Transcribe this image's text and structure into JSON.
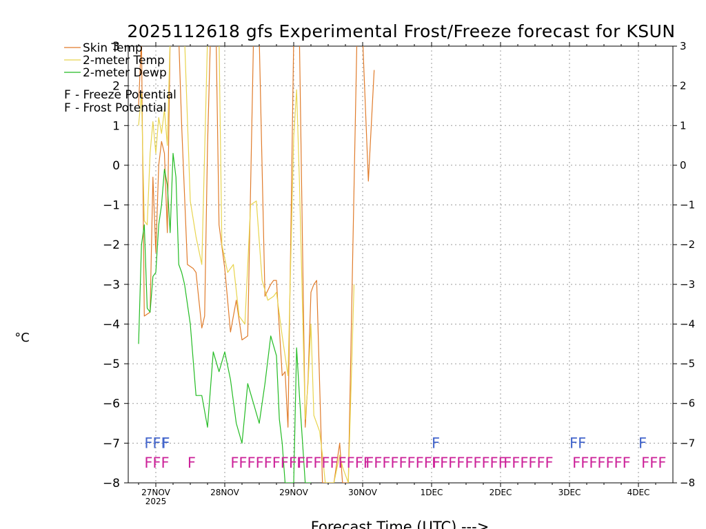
{
  "chart_data": {
    "type": "line",
    "title": "2025112618 gfs Experimental Frost/Freeze forecast for KSUN",
    "ylabel": "°C",
    "xlabel": "Forecast Time (UTC) --->",
    "ylim": [
      -8,
      3
    ],
    "yticks": [
      -8,
      -7,
      -6,
      -5,
      -4,
      -3,
      -2,
      -1,
      0,
      1,
      2,
      3
    ],
    "xlim_hours": [
      -3.6,
      186
    ],
    "grid": true,
    "x_ticks": [
      {
        "label": "27NOV",
        "sublabel": "2025",
        "hour": 6
      },
      {
        "label": "28NOV",
        "hour": 30
      },
      {
        "label": "29NOV",
        "hour": 54
      },
      {
        "label": "30NOV",
        "hour": 78
      },
      {
        "label": "1DEC",
        "hour": 102
      },
      {
        "label": "2DEC",
        "hour": 126
      },
      {
        "label": "3DEC",
        "hour": 150
      },
      {
        "label": "4DEC",
        "hour": 174
      }
    ],
    "legend": [
      {
        "label": "Skin Temp",
        "color": "#e07b2a"
      },
      {
        "label": "2-meter Temp",
        "color": "#e8d44d"
      },
      {
        "label": "2-meter Dewp",
        "color": "#22bb22"
      }
    ],
    "flag_legend": [
      {
        "label": "F - Freeze Potential",
        "color": "#cc2299"
      },
      {
        "label": "F - Frost Potential",
        "color": "#4466cc"
      }
    ],
    "series": [
      {
        "name": "Skin Temp",
        "color": "#e07b2a",
        "points": [
          [
            0,
            1.5
          ],
          [
            1,
            3.2
          ],
          [
            2,
            -3.8
          ],
          [
            3,
            -3.75
          ],
          [
            4,
            -3.7
          ],
          [
            5,
            -0.3
          ],
          [
            6,
            -2.2
          ],
          [
            7,
            0.0
          ],
          [
            8,
            0.6
          ],
          [
            9,
            0.3
          ],
          [
            10,
            -1.7
          ],
          [
            11,
            3.2
          ],
          [
            14,
            3.2
          ],
          [
            15,
            1.0
          ],
          [
            17,
            -2.5
          ],
          [
            19,
            -2.6
          ],
          [
            20,
            -2.7
          ],
          [
            22,
            -4.1
          ],
          [
            23,
            -3.8
          ],
          [
            24,
            0.5
          ],
          [
            25,
            3.2
          ],
          [
            27,
            3.2
          ],
          [
            28,
            -1.5
          ],
          [
            30,
            -2.6
          ],
          [
            32,
            -4.2
          ],
          [
            34,
            -3.4
          ],
          [
            36,
            -4.4
          ],
          [
            38,
            -4.3
          ],
          [
            40,
            3.2
          ],
          [
            42,
            3.2
          ],
          [
            44,
            -3.3
          ],
          [
            46,
            -3.0
          ],
          [
            47,
            -2.9
          ],
          [
            48,
            -2.9
          ],
          [
            50,
            -5.3
          ],
          [
            51,
            -5.2
          ],
          [
            52,
            -6.6
          ],
          [
            54,
            3.2
          ],
          [
            56,
            3.2
          ],
          [
            58,
            -6.6
          ],
          [
            59,
            -5.4
          ],
          [
            60,
            -3.2
          ],
          [
            61,
            -3.0
          ],
          [
            62,
            -2.9
          ],
          [
            64,
            -8.0
          ],
          [
            67,
            -8.0
          ],
          [
            68,
            -8.0
          ],
          [
            70,
            -7.0
          ],
          [
            71,
            -8.0
          ],
          [
            73,
            -8.0
          ],
          [
            76,
            3.2
          ],
          [
            78,
            3.2
          ],
          [
            80,
            -0.4
          ],
          [
            82,
            2.4
          ]
        ]
      },
      {
        "name": "2-meter Temp",
        "color": "#e8d44d",
        "points": [
          [
            0,
            1.0
          ],
          [
            1,
            1.8
          ],
          [
            2,
            -1.4
          ],
          [
            3,
            -1.5
          ],
          [
            4,
            0.3
          ],
          [
            5,
            1.1
          ],
          [
            6,
            0.3
          ],
          [
            7,
            1.2
          ],
          [
            8,
            0.8
          ],
          [
            9,
            1.4
          ],
          [
            10,
            0.5
          ],
          [
            11,
            3.2
          ],
          [
            16,
            3.2
          ],
          [
            18,
            -0.9
          ],
          [
            20,
            -1.8
          ],
          [
            22,
            -2.5
          ],
          [
            24,
            3.2
          ],
          [
            28,
            3.2
          ],
          [
            29,
            -2.0
          ],
          [
            31,
            -2.7
          ],
          [
            33,
            -2.5
          ],
          [
            35,
            -3.8
          ],
          [
            37,
            -4.0
          ],
          [
            39,
            -1.0
          ],
          [
            41,
            -0.9
          ],
          [
            43,
            -2.9
          ],
          [
            45,
            -3.4
          ],
          [
            47,
            -3.3
          ],
          [
            48,
            -3.2
          ],
          [
            50,
            -4.3
          ],
          [
            51,
            -4.8
          ],
          [
            52,
            -5.3
          ],
          [
            54,
            0.7
          ],
          [
            55,
            1.9
          ],
          [
            56,
            -0.4
          ],
          [
            58,
            -6.4
          ],
          [
            59,
            -5.5
          ],
          [
            60,
            -4.0
          ],
          [
            61,
            -6.3
          ],
          [
            63,
            -6.7
          ],
          [
            64,
            -7.3
          ],
          [
            65,
            -8.0
          ],
          [
            68,
            -8.0
          ],
          [
            70,
            -7.3
          ],
          [
            71,
            -7.6
          ],
          [
            73,
            -8.0
          ],
          [
            75,
            -3.0
          ]
        ]
      },
      {
        "name": "2-meter Dewp",
        "color": "#22bb22",
        "points": [
          [
            0,
            -4.5
          ],
          [
            1,
            -2.0
          ],
          [
            2,
            -1.5
          ],
          [
            3,
            -3.6
          ],
          [
            4,
            -3.7
          ],
          [
            5,
            -2.8
          ],
          [
            6,
            -2.7
          ],
          [
            7,
            -1.5
          ],
          [
            8,
            -1.0
          ],
          [
            9,
            -0.1
          ],
          [
            10,
            -0.5
          ],
          [
            11,
            -1.7
          ],
          [
            12,
            0.3
          ],
          [
            13,
            -0.3
          ],
          [
            14,
            -2.5
          ],
          [
            15,
            -2.7
          ],
          [
            16,
            -3.0
          ],
          [
            18,
            -4.0
          ],
          [
            20,
            -5.8
          ],
          [
            22,
            -5.8
          ],
          [
            24,
            -6.6
          ],
          [
            26,
            -4.7
          ],
          [
            28,
            -5.2
          ],
          [
            30,
            -4.7
          ],
          [
            32,
            -5.4
          ],
          [
            34,
            -6.5
          ],
          [
            36,
            -7.0
          ],
          [
            38,
            -5.5
          ],
          [
            40,
            -6.0
          ],
          [
            42,
            -6.5
          ],
          [
            44,
            -5.5
          ],
          [
            46,
            -4.3
          ],
          [
            48,
            -4.8
          ],
          [
            49,
            -6.4
          ],
          [
            50,
            -7.0
          ],
          [
            51,
            -8.0
          ],
          [
            53,
            -8.0
          ],
          [
            54,
            -8.0
          ],
          [
            55,
            -4.6
          ],
          [
            56,
            -5.8
          ],
          [
            57,
            -6.9
          ],
          [
            58,
            -8.0
          ],
          [
            60,
            -8.0
          ]
        ]
      }
    ],
    "frost_flags": [
      {
        "text": "FFF",
        "hour": 2
      },
      {
        "text": "F",
        "hour": 8
      },
      {
        "text": "F",
        "hour": 102
      },
      {
        "text": "FF",
        "hour": 150
      },
      {
        "text": "F",
        "hour": 174
      }
    ],
    "freeze_flags": [
      {
        "text": "FFF",
        "hour": 2
      },
      {
        "text": "F",
        "hour": 17
      },
      {
        "text": "FFFFFFFFF",
        "hour": 32
      },
      {
        "text": "FFFFFFFFF",
        "hour": 55
      },
      {
        "text": "FFFFFFFFF",
        "hour": 79
      },
      {
        "text": "FFFFFFFFF",
        "hour": 102
      },
      {
        "text": "FFFFFF",
        "hour": 127
      },
      {
        "text": "FFFFFFF",
        "hour": 151
      },
      {
        "text": "FFF",
        "hour": 175
      }
    ]
  }
}
